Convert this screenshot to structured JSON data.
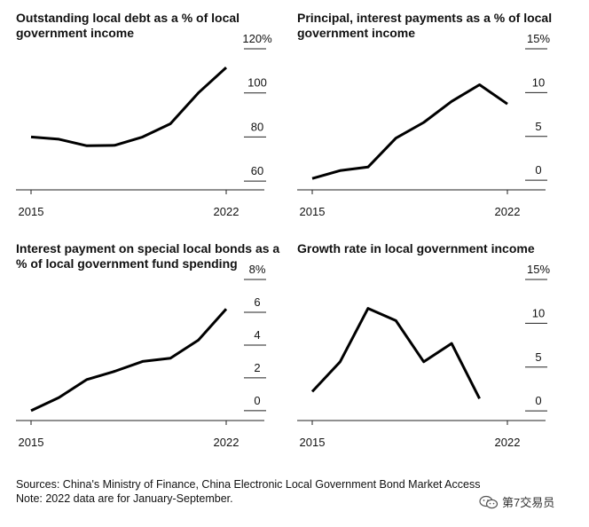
{
  "chart_data": [
    {
      "type": "line",
      "title": "Outstanding local debt as a % of local government income",
      "x": [
        2015,
        2016,
        2017,
        2018,
        2019,
        2020,
        2021,
        2022
      ],
      "series": [
        {
          "values": [
            80,
            79,
            76,
            76.2,
            80,
            86,
            100,
            111.5
          ]
        }
      ],
      "ylim": [
        56,
        120
      ],
      "yticks": [
        60,
        80,
        100,
        120
      ],
      "ytick_labels": [
        "60",
        "80",
        "100",
        "120%"
      ],
      "xtick_labels": [
        "2015",
        "2022"
      ],
      "xlim": [
        2015,
        2022
      ]
    },
    {
      "type": "line",
      "title": "Principal, interest payments as a % of local government income",
      "x": [
        2015,
        2016,
        2017,
        2018,
        2019,
        2020,
        2021,
        2022
      ],
      "series": [
        {
          "values": [
            0.2,
            1.1,
            1.5,
            4.8,
            6.6,
            9.0,
            10.9,
            8.7
          ]
        }
      ],
      "ylim": [
        -1.1,
        15
      ],
      "yticks": [
        0,
        5,
        10,
        15
      ],
      "ytick_labels": [
        "0",
        "5",
        "10",
        "15%"
      ],
      "xtick_labels": [
        "2015",
        "2022"
      ],
      "xlim": [
        2015,
        2022
      ]
    },
    {
      "type": "line",
      "title": "Interest payment on special local bonds as a % of local government fund spending",
      "x": [
        2015,
        2016,
        2017,
        2018,
        2019,
        2020,
        2021,
        2022
      ],
      "series": [
        {
          "values": [
            0,
            0.8,
            1.9,
            2.4,
            3.0,
            3.2,
            4.3,
            6.2
          ]
        }
      ],
      "ylim": [
        -0.6,
        8
      ],
      "yticks": [
        0,
        2,
        4,
        6,
        8
      ],
      "ytick_labels": [
        "0",
        "2",
        "4",
        "6",
        "8%"
      ],
      "xtick_labels": [
        "2015",
        "2022"
      ],
      "xlim": [
        2015,
        2022
      ]
    },
    {
      "type": "line",
      "title": "Growth rate in local government income",
      "x": [
        2015,
        2016,
        2017,
        2018,
        2019,
        2020,
        2021
      ],
      "series": [
        {
          "values": [
            2.2,
            5.6,
            11.7,
            10.3,
            5.6,
            7.7,
            1.4
          ]
        }
      ],
      "ylim": [
        -1.1,
        15
      ],
      "yticks": [
        0,
        5,
        10,
        15
      ],
      "ytick_labels": [
        "0",
        "5",
        "10",
        "15%"
      ],
      "xtick_labels": [
        "2015",
        "2022"
      ],
      "xlim": [
        2015,
        2022
      ]
    }
  ],
  "footer": {
    "sources": "Sources: China's Ministry of Finance, China Electronic Local Government Bond Market Access",
    "note": "Note: 2022 data are for January-September."
  },
  "watermark": {
    "text": "第7交易员",
    "icon": "wechat-icon"
  },
  "colors": {
    "line": "#000000",
    "tick": "#222222",
    "text": "#111111"
  }
}
